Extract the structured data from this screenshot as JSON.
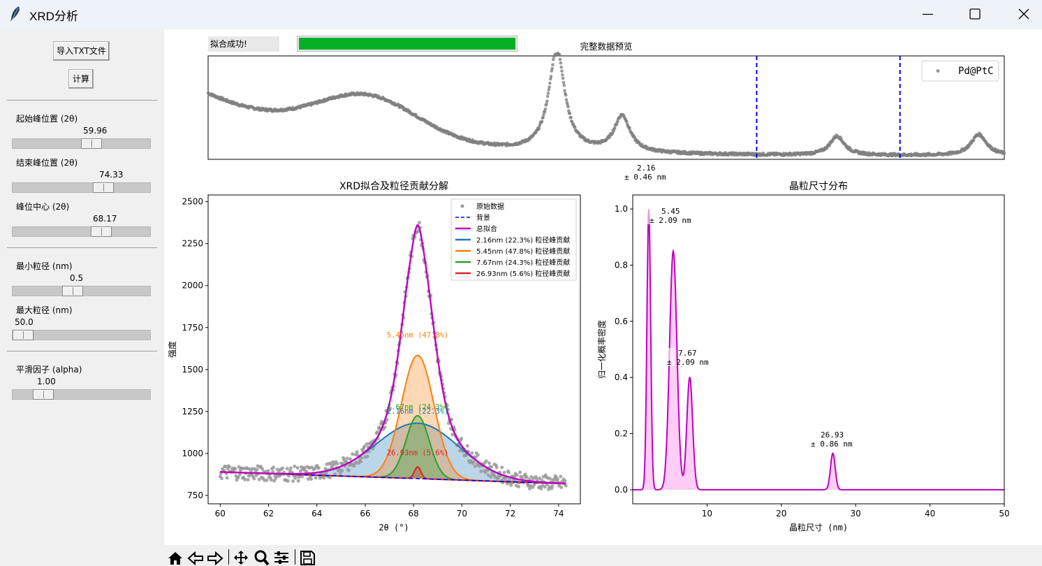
{
  "window": {
    "title": "XRD分析"
  },
  "sidebar": {
    "import_button": "导入TXT文件",
    "calc_button": "计算",
    "sliders": [
      {
        "label": "起始峰位置 (2θ)",
        "value": "59.96",
        "fraction": 0.58
      },
      {
        "label": "结束峰位置 (2θ)",
        "value": "74.33",
        "fraction": 0.68
      },
      {
        "label": "峰位中心 (2θ)",
        "value": "68.17",
        "fraction": 0.66
      },
      {
        "label": "最小粒径 (nm)",
        "value": "0.5",
        "fraction": 0.42
      },
      {
        "label": "最大粒径 (nm)",
        "value": "50.0",
        "fraction": 0.0
      },
      {
        "label": "平滑因子 (alpha)",
        "value": "1.00",
        "fraction": 0.17
      }
    ]
  },
  "status": {
    "text": "拟合成功!",
    "progress": 1.0,
    "progress_color": "#06b025"
  },
  "toolbar": {
    "icons": [
      "home-icon",
      "back-icon",
      "forward-icon",
      "pan-icon",
      "zoom-icon",
      "configure-icon",
      "save-icon"
    ]
  },
  "chart_data": [
    {
      "type": "scatter",
      "title": "完整数据预览",
      "legend": [
        "Pd@PtC"
      ],
      "legend_placement": "top-right",
      "vlines_x_fraction": [
        0.689,
        0.869
      ],
      "vline_color": "#0000ff",
      "series_color": "#808080",
      "annotation": {
        "line1": "2.16",
        "line2": "± 0.46 nm"
      }
    },
    {
      "type": "line",
      "title": "XRD拟合及粒径贡献分解",
      "xlabel": "2θ (°)",
      "ylabel": "强度",
      "xlim": [
        59.5,
        74.9
      ],
      "ylim": [
        700,
        2540
      ],
      "xticks": [
        60,
        62,
        64,
        66,
        68,
        70,
        72,
        74
      ],
      "yticks": [
        750,
        1000,
        1250,
        1500,
        1750,
        2000,
        2250,
        2500
      ],
      "legend_placement": "top-right",
      "legend": [
        {
          "label": "原始数据",
          "color": "#999999",
          "style": "dot"
        },
        {
          "label": "背景",
          "color": "#0000ff",
          "style": "dash"
        },
        {
          "label": "总拟合",
          "color": "#bf00bf",
          "style": "line"
        },
        {
          "label": "2.16nm (22.3%) 粒径峰贡献",
          "color": "#1f77b4",
          "style": "line"
        },
        {
          "label": "5.45nm (47.8%) 粒径峰贡献",
          "color": "#ff7f0e",
          "style": "line"
        },
        {
          "label": "7.67nm (24.3%) 粒径峰贡献",
          "color": "#2ca02c",
          "style": "line"
        },
        {
          "label": "26.93nm (5.6%) 粒径峰贡献",
          "color": "#d62728",
          "style": "line"
        }
      ],
      "background": {
        "x": [
          60,
          74.3
        ],
        "y": [
          890,
          820
        ]
      },
      "peak_center": 68.17,
      "components": [
        {
          "name": "2.16nm (22.3%)",
          "color": "#1f77b4",
          "height": 330,
          "width": 2.4,
          "label": "2.16nm (22.3%)"
        },
        {
          "name": "5.45nm (47.8%)",
          "color": "#ff7f0e",
          "height": 735,
          "width": 0.95,
          "label": "5.45nm (47.8%)"
        },
        {
          "name": "7.67nm (24.3%)",
          "color": "#2ca02c",
          "height": 375,
          "width": 0.68,
          "label": "7.67nm (24.3%)"
        },
        {
          "name": "26.93nm (5.6%)",
          "color": "#d62728",
          "height": 70,
          "width": 0.19,
          "label": "26.93nm (5.6%)"
        }
      ],
      "total_peak": 2390
    },
    {
      "type": "area",
      "title": "晶粒尺寸分布",
      "xlabel": "晶粒尺寸 (nm)",
      "ylabel": "归一化概率密度",
      "xlim": [
        0,
        50
      ],
      "ylim": [
        -0.05,
        1.05
      ],
      "xticks": [
        10,
        20,
        30,
        40,
        50
      ],
      "yticks": [
        0.0,
        0.2,
        0.4,
        0.6,
        0.8,
        1.0
      ],
      "color": "#bf00bf",
      "fill": "#ffc8f5",
      "peaks": [
        {
          "x": 2.16,
          "y": 1.0,
          "w": 0.35
        },
        {
          "x": 5.45,
          "y": 0.85,
          "w": 0.7
        },
        {
          "x": 7.67,
          "y": 0.4,
          "w": 0.55
        },
        {
          "x": 26.93,
          "y": 0.13,
          "w": 0.45
        }
      ],
      "annotations": [
        {
          "line1": "5.45",
          "line2": "± 2.09 nm"
        },
        {
          "line1": "7.67",
          "line2": "± 2.09 nm"
        },
        {
          "line1": "26.93",
          "line2": "± 0.86 nm"
        }
      ]
    }
  ]
}
